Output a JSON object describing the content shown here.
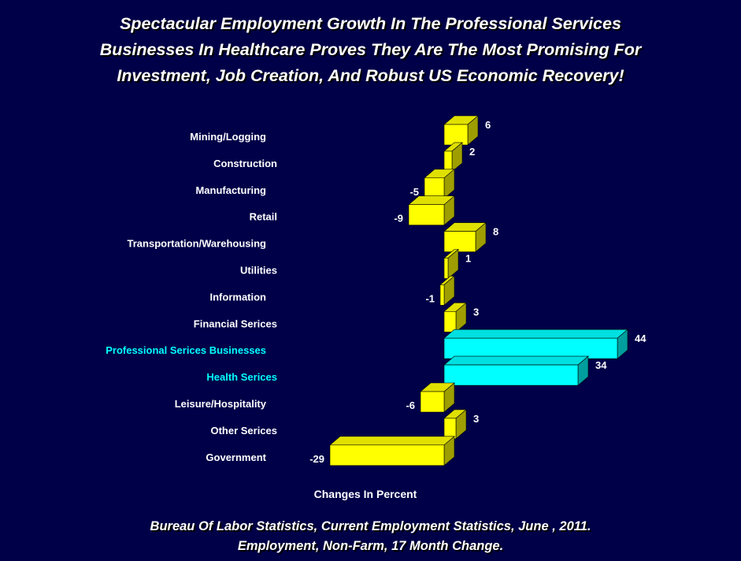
{
  "title": {
    "line1": "Spectacular Employment Growth In The Professional Services",
    "line2": "Businesses In Healthcare Proves They Are The Most Promising For",
    "line3": "Investment, Job Creation, And Robust US Economic Recovery!"
  },
  "source": {
    "line1": "Bureau Of Labor Statistics, Current Employment Statistics, June , 2011.",
    "line2": "Employment, Non-Farm, 17 Month Change."
  },
  "colors": {
    "background": "#000048",
    "default_bar": "#ffff00",
    "highlight_bar": "#00ffff",
    "default_label": "#ffffff",
    "highlight_label": "#00ffff"
  },
  "chart_data": {
    "type": "bar",
    "orientation": "horizontal",
    "style": "3d",
    "xlabel": "Changes In Percent",
    "ylabel": "",
    "categories": [
      "Mining/Logging",
      "Construction",
      "Manufacturing",
      "Retail",
      "Transportation/Warehousing",
      "Utilities",
      "Information",
      "Financial Serices",
      "Professional Serices Businesses",
      "Health Serices",
      "Leisure/Hospitality",
      "Other Serices",
      "Government"
    ],
    "values": [
      6,
      2,
      -5,
      -9,
      8,
      1,
      -1,
      3,
      44,
      34,
      -6,
      3,
      -29
    ],
    "highlighted": [
      false,
      false,
      false,
      false,
      false,
      false,
      false,
      false,
      true,
      true,
      false,
      false,
      false
    ],
    "value_labels": [
      "6",
      "2",
      "-5",
      "-9",
      "8",
      "1",
      "-1",
      "3",
      "44",
      "34",
      "-6",
      "3",
      "-29"
    ],
    "grid": false,
    "legend": "none"
  }
}
